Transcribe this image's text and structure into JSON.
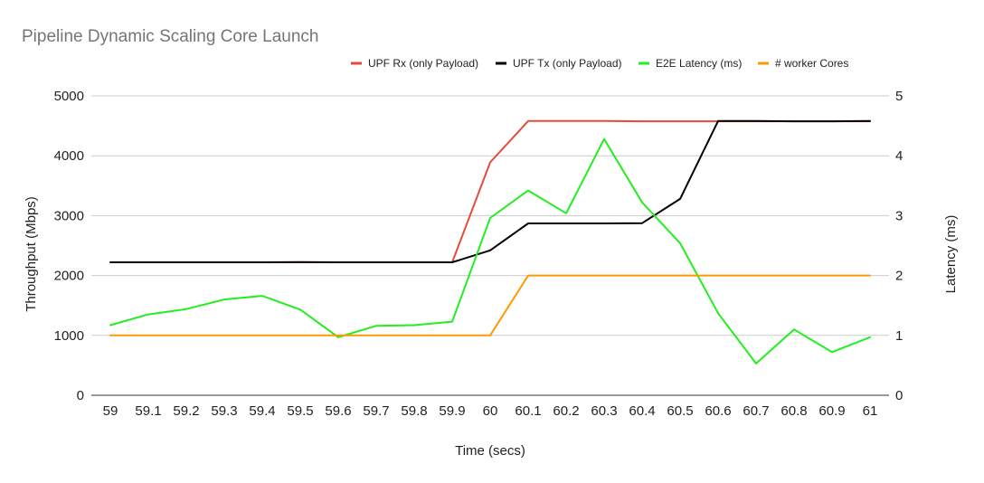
{
  "chart_data": {
    "type": "line",
    "title": "Pipeline Dynamic Scaling Core Launch",
    "xlabel": "Time (secs)",
    "ylabel": "Throughput (Mbps)",
    "y2label": "Latency (ms)",
    "x": [
      "59",
      "59.1",
      "59.2",
      "59.3",
      "59.4",
      "59.5",
      "59.6",
      "59.7",
      "59.8",
      "59.9",
      "60",
      "60.1",
      "60.2",
      "60.3",
      "60.4",
      "60.5",
      "60.6",
      "60.7",
      "60.8",
      "60.9",
      "61"
    ],
    "ylim": [
      0,
      5000
    ],
    "y2lim": [
      0,
      5
    ],
    "yticks": [
      "0",
      "1000",
      "2000",
      "3000",
      "4000",
      "5000"
    ],
    "y2ticks": [
      "0",
      "1",
      "2",
      "3",
      "4",
      "5"
    ],
    "grid": true,
    "legend_position": "top-right",
    "series": [
      {
        "name": "UPF Rx (only Payload)",
        "color": "#e64a3b",
        "axis": "left",
        "values": [
          2220,
          2220,
          2220,
          2220,
          2220,
          2220,
          2220,
          2220,
          2220,
          2220,
          3890,
          4580,
          4580,
          4580,
          4575,
          4575,
          4575,
          4575,
          4575,
          4575,
          4575
        ]
      },
      {
        "name": "UPF Tx (only Payload)",
        "color": "#000000",
        "axis": "left",
        "values": [
          2220,
          2220,
          2220,
          2220,
          2220,
          2225,
          2220,
          2220,
          2220,
          2220,
          2420,
          2870,
          2870,
          2870,
          2875,
          3280,
          4580,
          4580,
          4575,
          4575,
          4580
        ]
      },
      {
        "name": "E2E Latency (ms)",
        "color": "#22ee22",
        "axis": "right",
        "values": [
          1.17,
          1.35,
          1.44,
          1.6,
          1.66,
          1.43,
          0.97,
          1.16,
          1.17,
          1.23,
          2.96,
          3.42,
          3.04,
          4.28,
          3.22,
          2.54,
          1.37,
          0.53,
          1.1,
          0.72,
          0.97
        ]
      },
      {
        "name": "# worker Cores",
        "color": "#ff9900",
        "axis": "right",
        "values": [
          1,
          1,
          1,
          1,
          1,
          1,
          1,
          1,
          1,
          1,
          1,
          2,
          2,
          2,
          2,
          2,
          2,
          2,
          2,
          2,
          2
        ]
      }
    ]
  }
}
